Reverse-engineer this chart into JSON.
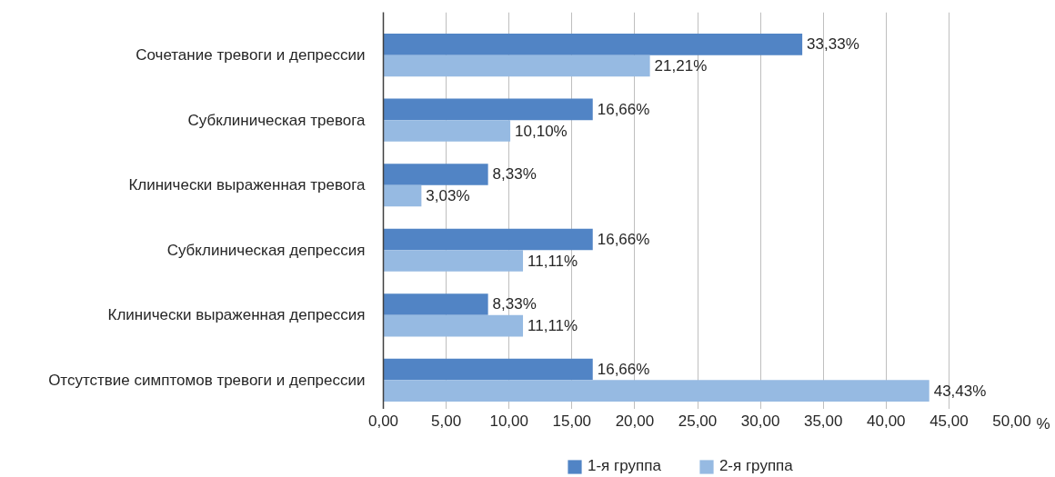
{
  "chart_data": {
    "type": "bar",
    "orientation": "horizontal",
    "categories": [
      "Сочетание тревоги и депрессии",
      "Субклиническая тревога",
      "Клинически выраженная тревога",
      "Субклиническая депрессия",
      "Клинически выраженная депрессия",
      "Отсутствие симптомов тревоги и депрессии"
    ],
    "series": [
      {
        "name": "1-я группа",
        "color": "#5184c5",
        "values": [
          33.33,
          16.66,
          8.33,
          16.66,
          8.33,
          16.66
        ],
        "value_labels": [
          "33,33%",
          "16,66%",
          "8,33%",
          "16,66%",
          "8,33%",
          "16,66%"
        ]
      },
      {
        "name": "2-я группа",
        "color": "#96bae2",
        "values": [
          21.21,
          10.1,
          3.03,
          11.11,
          11.11,
          43.43
        ],
        "value_labels": [
          "21,21%",
          "10,10%",
          "3,03%",
          "11,11%",
          "11,11%",
          "43,43%"
        ]
      }
    ],
    "xlim": [
      0,
      50
    ],
    "xticks": [
      {
        "value": 0,
        "label": "0,00"
      },
      {
        "value": 5,
        "label": "5,00"
      },
      {
        "value": 10,
        "label": "10,00"
      },
      {
        "value": 15,
        "label": "15,00"
      },
      {
        "value": 20,
        "label": "20,00"
      },
      {
        "value": 25,
        "label": "25,00"
      },
      {
        "value": 30,
        "label": "30,00"
      },
      {
        "value": 35,
        "label": "35,00"
      },
      {
        "value": 40,
        "label": "40,00"
      },
      {
        "value": 45,
        "label": "45,00"
      },
      {
        "value": 50,
        "label": "50,00"
      }
    ],
    "xlabel": "%",
    "grid": "x",
    "legend": "bottom"
  }
}
